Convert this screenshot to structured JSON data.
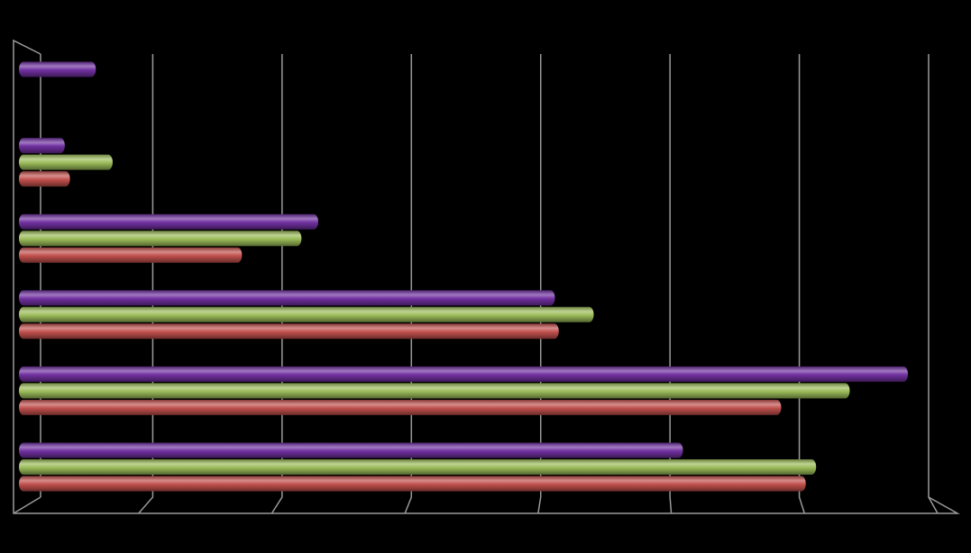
{
  "chart_data": {
    "type": "bar",
    "orientation": "horizontal",
    "categories": [
      null,
      null,
      null,
      null,
      null,
      null
    ],
    "series": [
      {
        "color": "#c0504d",
        "values": [
          6.05,
          5.86,
          4.14,
          1.69,
          0.36,
          null
        ]
      },
      {
        "color": "#9bbb59",
        "values": [
          6.13,
          6.39,
          4.41,
          2.15,
          0.69,
          null
        ]
      },
      {
        "color": "#7030a0",
        "values": [
          5.1,
          6.84,
          4.11,
          2.28,
          0.32,
          0.56
        ]
      }
    ],
    "xlim": [
      0,
      7
    ],
    "xticks": [
      0,
      1,
      2,
      3,
      4,
      5,
      6,
      7
    ],
    "grid": true
  }
}
